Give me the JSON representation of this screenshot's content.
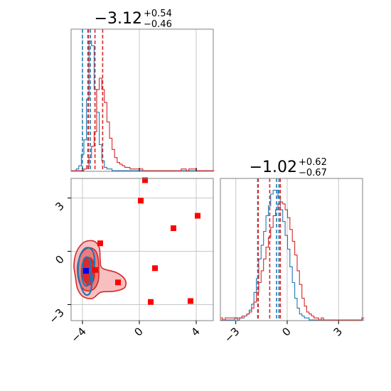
{
  "colors": {
    "series_blue": "#1f77b4",
    "series_red": "#d62728",
    "marker_red": "#ff0000",
    "marker_blue": "#0000ff",
    "fill_red_outer": "#f5b5b5",
    "fill_red_mid": "#ec6f6f",
    "fill_red_inner": "#d92626",
    "grid": "#c8c8c8",
    "frame": "#808080"
  },
  "titles": {
    "x_param": {
      "value": "−3.12",
      "plus": "+0.54",
      "minus": "−0.46"
    },
    "y_param": {
      "value": "−1.02",
      "plus": "+0.62",
      "minus": "−0.67"
    }
  },
  "ticks": {
    "x_param_labels": [
      "−4",
      "0",
      "4"
    ],
    "y_param_labels": [
      "−3",
      "0",
      "3"
    ]
  },
  "chart_data": [
    {
      "type": "histogram",
      "panel": "top-left marginal (x parameter)",
      "xlim": [
        -4.8,
        5.2
      ],
      "bins_edges_start": -4.8,
      "bin_width": 0.18,
      "series": [
        {
          "color": "blue",
          "counts": [
            0,
            0,
            1,
            3,
            10,
            19,
            44,
            80,
            77,
            50,
            36,
            16,
            6,
            2,
            1,
            1,
            0,
            0,
            0,
            0,
            0,
            0,
            0,
            0,
            0,
            0,
            0,
            0,
            0,
            0,
            0,
            0,
            0,
            0,
            0,
            0,
            0,
            0,
            0,
            0,
            0,
            0,
            0,
            0,
            0,
            0,
            0,
            0,
            0,
            0,
            0,
            0,
            0,
            0,
            0,
            0
          ]
        },
        {
          "color": "red",
          "counts": [
            0,
            0,
            0,
            0,
            0,
            1,
            3,
            8,
            15,
            24,
            50,
            57,
            50,
            42,
            30,
            20,
            13,
            8,
            5,
            4,
            3,
            2,
            2,
            1,
            1,
            1,
            1,
            1,
            0,
            0,
            0,
            0,
            0,
            0,
            0,
            0,
            0,
            0,
            0,
            0,
            0,
            0,
            0,
            1,
            1,
            0,
            1,
            1,
            1,
            0,
            0,
            0,
            0,
            0,
            0,
            0
          ]
        }
      ],
      "quantile_lines": [
        {
          "color": "blue",
          "values": [
            -4.0,
            -3.62,
            -3.45
          ]
        },
        {
          "color": "red",
          "values": [
            -3.58,
            -3.12,
            -2.58
          ]
        }
      ],
      "grid": true
    },
    {
      "type": "histogram",
      "panel": "bottom-right marginal (y parameter)",
      "xlim": [
        -3.9,
        4.4
      ],
      "bins_edges_start": -3.9,
      "bin_width": 0.14,
      "series": [
        {
          "color": "blue",
          "counts": [
            0,
            0,
            0,
            0,
            0,
            0,
            1,
            0,
            1,
            1,
            2,
            3,
            5,
            8,
            14,
            21,
            31,
            38,
            45,
            53,
            58,
            64,
            66,
            66,
            62,
            56,
            50,
            43,
            36,
            27,
            19,
            11,
            6,
            3,
            2,
            1,
            1,
            0,
            0,
            0,
            0,
            0,
            0,
            0,
            0,
            0,
            0,
            0,
            0,
            0,
            0,
            0,
            0,
            0,
            0,
            0,
            0,
            0,
            0,
            0
          ]
        },
        {
          "color": "red",
          "counts": [
            1,
            0,
            1,
            1,
            1,
            1,
            1,
            1,
            1,
            2,
            2,
            3,
            4,
            6,
            9,
            14,
            19,
            25,
            31,
            37,
            42,
            47,
            53,
            56,
            59,
            60,
            59,
            56,
            52,
            46,
            40,
            33,
            25,
            18,
            11,
            7,
            4,
            3,
            2,
            1,
            1,
            0,
            1,
            0,
            0,
            0,
            0,
            0,
            0,
            0,
            0,
            0,
            0,
            0,
            0,
            0,
            0,
            0,
            0,
            1
          ]
        }
      ],
      "quantile_lines": [
        {
          "color": "blue",
          "values": [
            -1.72,
            -0.62,
            -0.48
          ]
        },
        {
          "color": "red",
          "values": [
            -1.69,
            -1.02,
            -0.4
          ]
        }
      ],
      "grid": true
    },
    {
      "type": "scatter",
      "panel": "bottom-left 2D contour panel",
      "xlim": [
        -4.8,
        5.2
      ],
      "ylim": [
        -3.9,
        4.1
      ],
      "contours": [
        {
          "color": "red",
          "level": "outer",
          "points": [
            [
              -4.5,
              -1.4
            ],
            [
              -4.6,
              -0.8
            ],
            [
              -4.45,
              -0.1
            ],
            [
              -4.0,
              0.45
            ],
            [
              -3.5,
              0.6
            ],
            [
              -3.05,
              0.5
            ],
            [
              -2.8,
              0.15
            ],
            [
              -2.75,
              -0.5
            ],
            [
              -2.6,
              -0.95
            ],
            [
              -1.6,
              -1.2
            ],
            [
              -1.0,
              -1.6
            ],
            [
              -1.05,
              -2.05
            ],
            [
              -1.8,
              -2.25
            ],
            [
              -2.7,
              -2.3
            ],
            [
              -3.3,
              -2.65
            ],
            [
              -3.95,
              -2.55
            ],
            [
              -4.35,
              -2.1
            ]
          ]
        },
        {
          "color": "red",
          "level": "middle",
          "points": [
            [
              -4.35,
              -1.2
            ],
            [
              -4.3,
              -0.6
            ],
            [
              -4.0,
              -0.05
            ],
            [
              -3.55,
              0.2
            ],
            [
              -3.1,
              0.05
            ],
            [
              -2.9,
              -0.4
            ],
            [
              -2.85,
              -1.05
            ],
            [
              -2.9,
              -1.7
            ],
            [
              -3.25,
              -2.15
            ],
            [
              -3.8,
              -2.2
            ],
            [
              -4.2,
              -1.8
            ]
          ]
        },
        {
          "color": "red",
          "level": "inner",
          "points": [
            [
              -4.0,
              -1.15
            ],
            [
              -3.95,
              -0.65
            ],
            [
              -3.6,
              -0.35
            ],
            [
              -3.25,
              -0.55
            ],
            [
              -3.15,
              -1.15
            ],
            [
              -3.25,
              -1.7
            ],
            [
              -3.6,
              -1.9
            ],
            [
              -3.9,
              -1.6
            ]
          ]
        },
        {
          "color": "blue",
          "level": "outer",
          "points": [
            [
              -4.25,
              -0.5
            ],
            [
              -4.05,
              -0.05
            ],
            [
              -3.7,
              0.2
            ],
            [
              -3.3,
              0.05
            ],
            [
              -3.15,
              -0.6
            ],
            [
              -3.3,
              -1.6
            ],
            [
              -3.45,
              -2.3
            ],
            [
              -3.75,
              -2.45
            ],
            [
              -4.05,
              -2.1
            ],
            [
              -4.3,
              -1.3
            ]
          ]
        },
        {
          "color": "blue",
          "level": "inner",
          "points": [
            [
              -4.0,
              -0.75
            ],
            [
              -3.8,
              -0.35
            ],
            [
              -3.5,
              -0.45
            ],
            [
              -3.4,
              -1.2
            ],
            [
              -3.55,
              -1.85
            ],
            [
              -3.85,
              -1.9
            ],
            [
              -4.05,
              -1.4
            ]
          ]
        }
      ],
      "series": [
        {
          "color": "red",
          "marker": "square",
          "points": [
            [
              0.4,
              4.0
            ],
            [
              0.1,
              2.85
            ],
            [
              4.1,
              2.0
            ],
            [
              2.4,
              1.3
            ],
            [
              -2.75,
              0.45
            ],
            [
              -3.1,
              -1.05
            ],
            [
              1.1,
              -0.95
            ],
            [
              -1.5,
              -1.75
            ],
            [
              0.8,
              -2.85
            ],
            [
              3.6,
              -2.8
            ]
          ]
        },
        {
          "color": "blue",
          "marker": "square",
          "points": [
            [
              -3.75,
              -1.1
            ]
          ]
        }
      ],
      "grid": true
    }
  ]
}
